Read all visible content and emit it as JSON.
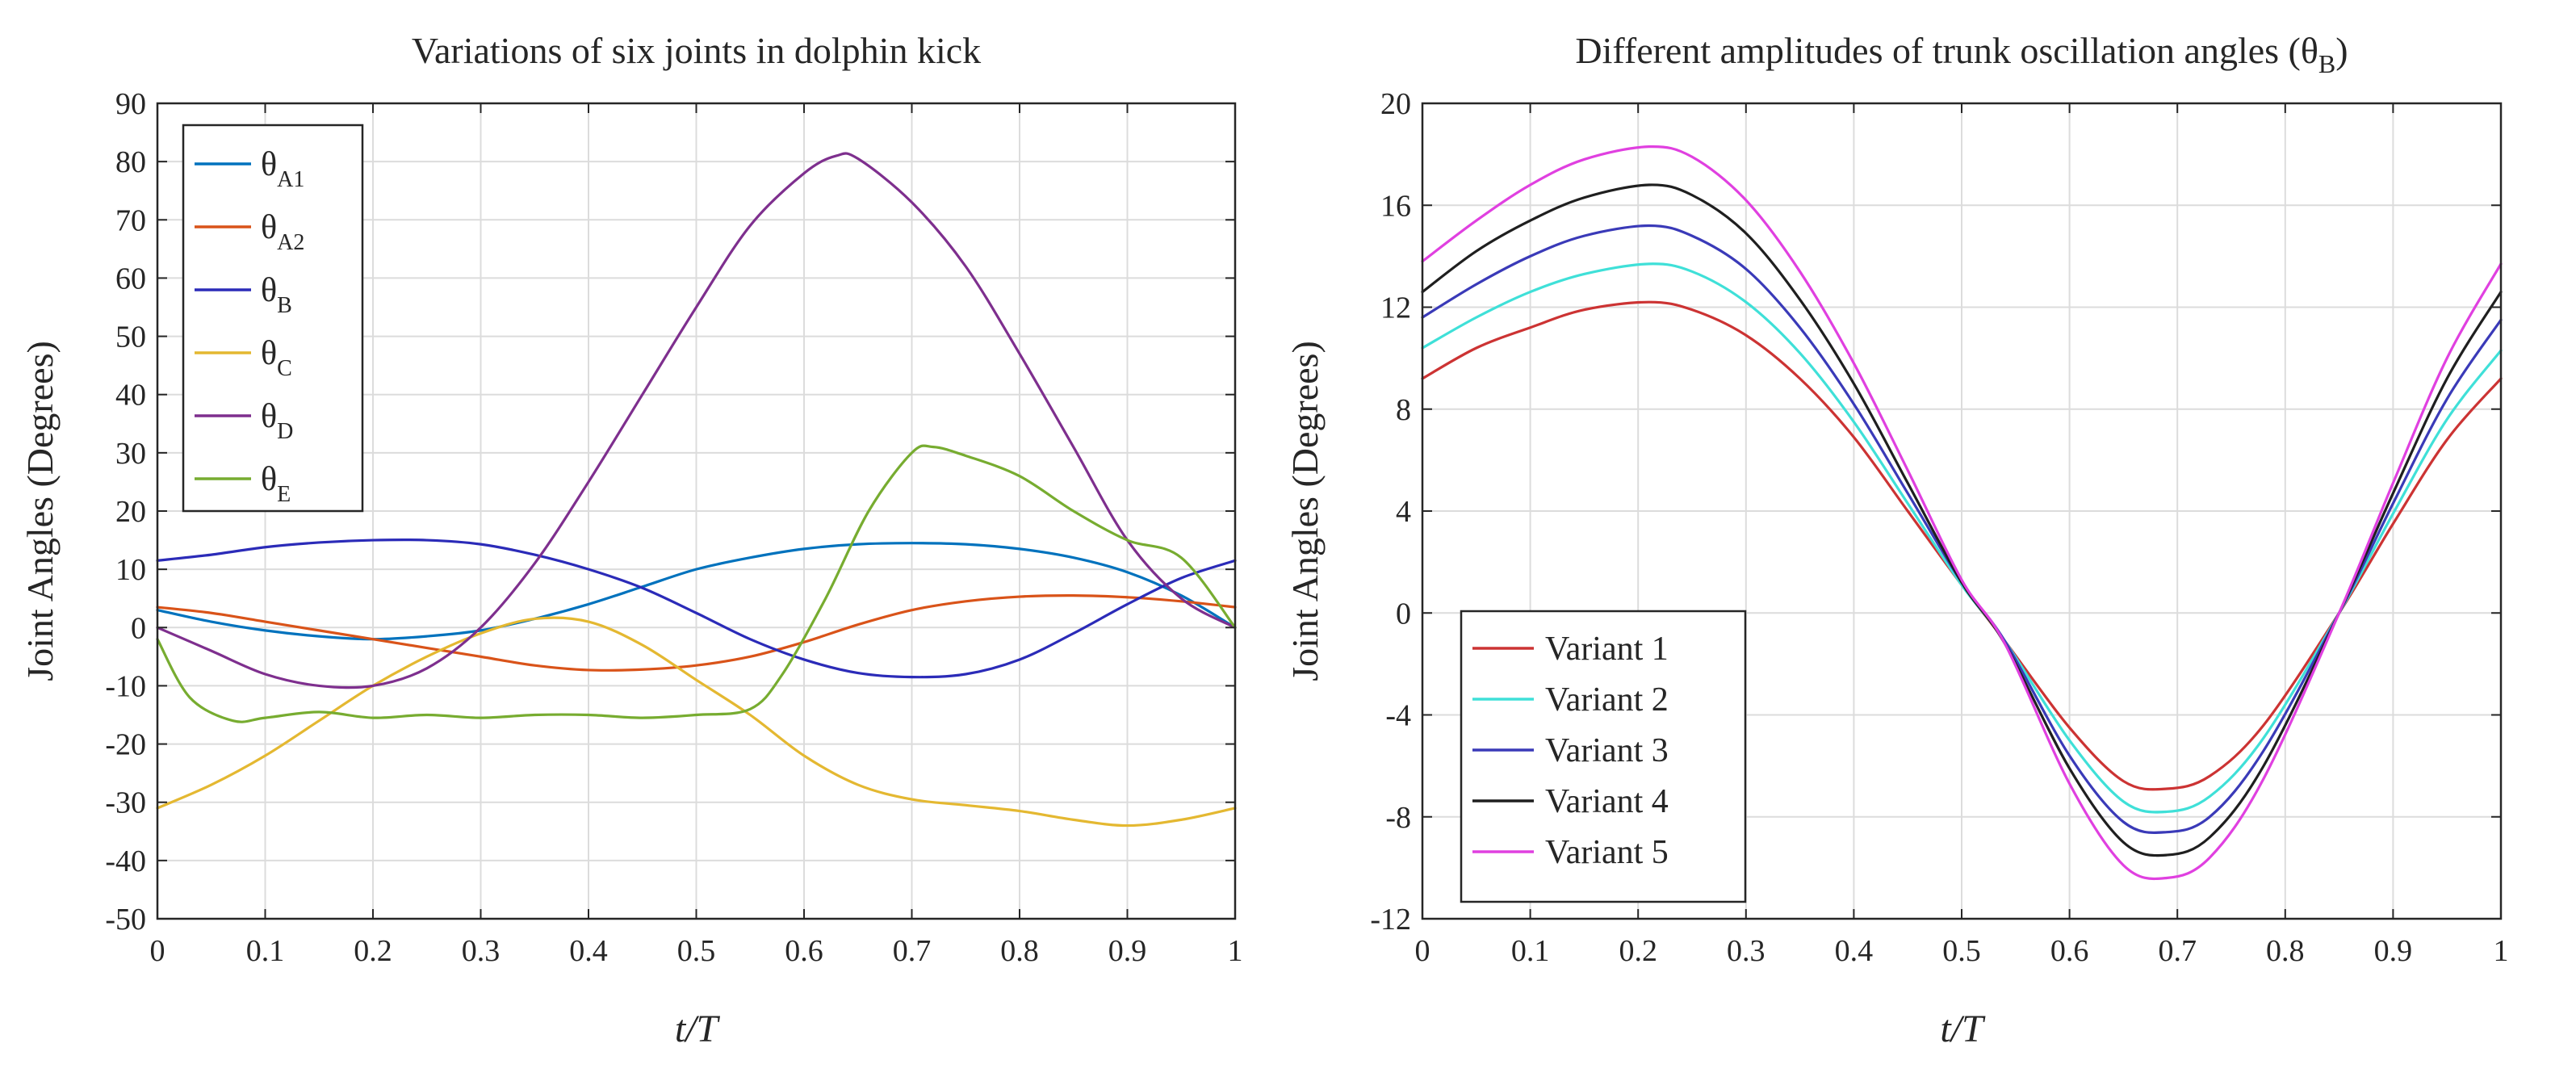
{
  "chart_data": [
    {
      "type": "line",
      "title": "Variations of six joints in dolphin kick",
      "xlabel": "t/T",
      "ylabel": "Joint Angles (Degrees)",
      "xlim": [
        0,
        1
      ],
      "ylim": [
        -50,
        90
      ],
      "xticks": [
        0,
        0.1,
        0.2,
        0.3,
        0.4,
        0.5,
        0.6,
        0.7,
        0.8,
        0.9,
        1
      ],
      "xtick_labels": [
        "0",
        "0.1",
        "0.2",
        "0.3",
        "0.4",
        "0.5",
        "0.6",
        "0.7",
        "0.8",
        "0.9",
        "1"
      ],
      "yticks": [
        -50,
        -40,
        -30,
        -20,
        -10,
        0,
        10,
        20,
        30,
        40,
        50,
        60,
        70,
        80,
        90
      ],
      "ytick_labels": [
        "-50",
        "-40",
        "-30",
        "-20",
        "-10",
        "0",
        "10",
        "20",
        "30",
        "40",
        "50",
        "60",
        "70",
        "80",
        "90"
      ],
      "grid": true,
      "legend_position": "top-left",
      "series": [
        {
          "name": "θA1",
          "symbol": "θ",
          "sub": "A1",
          "color": "#0072bd",
          "x": [
            0,
            0.05,
            0.1,
            0.15,
            0.2,
            0.25,
            0.3,
            0.35,
            0.4,
            0.45,
            0.5,
            0.55,
            0.6,
            0.65,
            0.7,
            0.75,
            0.8,
            0.85,
            0.9,
            0.95,
            1
          ],
          "y": [
            3,
            1,
            -0.5,
            -1.5,
            -2,
            -1.5,
            -0.5,
            1.5,
            4,
            7,
            10,
            12,
            13.5,
            14.3,
            14.5,
            14.3,
            13.5,
            12,
            9.5,
            5.5,
            0
          ]
        },
        {
          "name": "θA2",
          "symbol": "θ",
          "sub": "A2",
          "color": "#d95319",
          "x": [
            0,
            0.05,
            0.1,
            0.15,
            0.2,
            0.25,
            0.3,
            0.35,
            0.4,
            0.45,
            0.5,
            0.55,
            0.6,
            0.65,
            0.7,
            0.75,
            0.8,
            0.85,
            0.9,
            0.95,
            1
          ],
          "y": [
            3.5,
            2.5,
            1,
            -0.5,
            -2,
            -3.5,
            -5,
            -6.5,
            -7.3,
            -7.2,
            -6.5,
            -5,
            -2.5,
            0.5,
            3,
            4.5,
            5.3,
            5.5,
            5.2,
            4.5,
            3.5
          ]
        },
        {
          "name": "θB",
          "symbol": "θ",
          "sub": "B",
          "color": "#2b2bb8",
          "x": [
            0,
            0.05,
            0.1,
            0.15,
            0.2,
            0.25,
            0.3,
            0.35,
            0.4,
            0.45,
            0.5,
            0.55,
            0.6,
            0.65,
            0.7,
            0.75,
            0.8,
            0.85,
            0.9,
            0.95,
            1
          ],
          "y": [
            11.5,
            12.5,
            13.8,
            14.6,
            15,
            15,
            14.3,
            12.5,
            10,
            6.8,
            2.5,
            -2,
            -5.5,
            -7.8,
            -8.5,
            -8,
            -5.5,
            -1,
            4,
            8.5,
            11.5
          ]
        },
        {
          "name": "θC",
          "symbol": "θ",
          "sub": "C",
          "color": "#e4b831",
          "x": [
            0,
            0.05,
            0.1,
            0.15,
            0.2,
            0.25,
            0.3,
            0.35,
            0.4,
            0.45,
            0.5,
            0.55,
            0.6,
            0.65,
            0.7,
            0.75,
            0.8,
            0.85,
            0.9,
            0.95,
            1
          ],
          "y": [
            -31,
            -27,
            -22,
            -16,
            -10,
            -5,
            -1,
            1.5,
            1,
            -3,
            -9,
            -15,
            -22,
            -27,
            -29.5,
            -30.5,
            -31.5,
            -33,
            -34,
            -33,
            -31
          ]
        },
        {
          "name": "θD",
          "symbol": "θ",
          "sub": "D",
          "color": "#7e2f8e",
          "x": [
            0,
            0.05,
            0.1,
            0.15,
            0.2,
            0.25,
            0.3,
            0.35,
            0.4,
            0.45,
            0.5,
            0.55,
            0.6,
            0.63,
            0.65,
            0.7,
            0.75,
            0.8,
            0.85,
            0.9,
            0.95,
            1
          ],
          "y": [
            0,
            -4,
            -8,
            -10,
            -10,
            -7,
            0,
            11,
            25,
            40,
            55,
            69,
            78,
            81,
            80.5,
            73,
            62,
            47,
            31,
            15,
            5,
            0
          ]
        },
        {
          "name": "θE",
          "symbol": "θ",
          "sub": "E",
          "color": "#77ac30",
          "x": [
            0,
            0.03,
            0.07,
            0.1,
            0.15,
            0.2,
            0.25,
            0.3,
            0.35,
            0.4,
            0.45,
            0.5,
            0.55,
            0.58,
            0.62,
            0.66,
            0.7,
            0.72,
            0.75,
            0.8,
            0.85,
            0.9,
            0.95,
            1
          ],
          "y": [
            -2,
            -12,
            -16,
            -15.5,
            -14.5,
            -15.5,
            -15,
            -15.5,
            -15,
            -15,
            -15.5,
            -15,
            -14,
            -8,
            5,
            20,
            30,
            31,
            29.5,
            26,
            20,
            15,
            12,
            0
          ]
        }
      ]
    },
    {
      "type": "line",
      "title": "Different amplitudes of trunk oscillation angles (θ",
      "title_sub": "B",
      "title_end": ")",
      "xlabel": "t/T",
      "ylabel": "Joint Angles (Degrees)",
      "xlim": [
        0,
        1
      ],
      "ylim": [
        -12,
        20
      ],
      "xticks": [
        0,
        0.1,
        0.2,
        0.3,
        0.4,
        0.5,
        0.6,
        0.7,
        0.8,
        0.9,
        1
      ],
      "xtick_labels": [
        "0",
        "0.1",
        "0.2",
        "0.3",
        "0.4",
        "0.5",
        "0.6",
        "0.7",
        "0.8",
        "0.9",
        "1"
      ],
      "yticks": [
        -12,
        -8,
        -4,
        0,
        4,
        8,
        12,
        16,
        20
      ],
      "ytick_labels": [
        "-12",
        "-8",
        "-4",
        "0",
        "4",
        "8",
        "12",
        "16",
        "20"
      ],
      "grid": true,
      "legend_position": "bottom-left",
      "series": [
        {
          "name": "Variant 1",
          "color": "#cc3333",
          "x": [
            0,
            0.05,
            0.1,
            0.15,
            0.21,
            0.25,
            0.3,
            0.35,
            0.4,
            0.45,
            0.5,
            0.54,
            0.6,
            0.65,
            0.69,
            0.73,
            0.78,
            0.85,
            0.9,
            0.95,
            1
          ],
          "y": [
            9.2,
            10.4,
            11.2,
            11.9,
            12.2,
            11.9,
            10.9,
            9.2,
            6.9,
            4.0,
            1.1,
            -1.1,
            -4.5,
            -6.6,
            -6.9,
            -6.4,
            -4.4,
            0,
            3.5,
            6.8,
            9.2
          ]
        },
        {
          "name": "Variant 2",
          "color": "#3fe0d8",
          "x": [
            0,
            0.05,
            0.1,
            0.15,
            0.21,
            0.25,
            0.3,
            0.35,
            0.4,
            0.45,
            0.5,
            0.54,
            0.6,
            0.65,
            0.69,
            0.73,
            0.78,
            0.85,
            0.9,
            0.95,
            1
          ],
          "y": [
            10.4,
            11.6,
            12.6,
            13.3,
            13.7,
            13.4,
            12.2,
            10.2,
            7.5,
            4.3,
            1.1,
            -1.1,
            -5.0,
            -7.4,
            -7.8,
            -7.2,
            -4.9,
            0,
            3.9,
            7.6,
            10.3
          ]
        },
        {
          "name": "Variant 3",
          "color": "#3a3ab8",
          "x": [
            0,
            0.05,
            0.1,
            0.15,
            0.21,
            0.25,
            0.3,
            0.35,
            0.4,
            0.45,
            0.5,
            0.54,
            0.6,
            0.65,
            0.69,
            0.73,
            0.78,
            0.85,
            0.9,
            0.95,
            1
          ],
          "y": [
            11.6,
            12.9,
            14.0,
            14.8,
            15.2,
            14.8,
            13.5,
            11.2,
            8.2,
            4.7,
            1.2,
            -1.1,
            -5.6,
            -8.2,
            -8.6,
            -8.0,
            -5.4,
            0,
            4.3,
            8.4,
            11.5
          ]
        },
        {
          "name": "Variant 4",
          "color": "#1f1f1f",
          "x": [
            0,
            0.05,
            0.1,
            0.15,
            0.21,
            0.25,
            0.3,
            0.35,
            0.4,
            0.45,
            0.5,
            0.54,
            0.6,
            0.65,
            0.69,
            0.73,
            0.78,
            0.85,
            0.9,
            0.95,
            1
          ],
          "y": [
            12.6,
            14.2,
            15.4,
            16.3,
            16.8,
            16.4,
            14.9,
            12.3,
            9.0,
            5.1,
            1.2,
            -1.2,
            -6.1,
            -9.0,
            -9.5,
            -8.8,
            -6.0,
            0,
            4.7,
            9.2,
            12.6
          ]
        },
        {
          "name": "Variant 5",
          "color": "#e040e0",
          "x": [
            0,
            0.05,
            0.1,
            0.15,
            0.21,
            0.25,
            0.3,
            0.35,
            0.4,
            0.45,
            0.5,
            0.54,
            0.6,
            0.65,
            0.69,
            0.73,
            0.78,
            0.85,
            0.9,
            0.95,
            1
          ],
          "y": [
            13.8,
            15.4,
            16.8,
            17.8,
            18.3,
            17.9,
            16.2,
            13.4,
            9.8,
            5.6,
            1.3,
            -1.2,
            -6.7,
            -9.9,
            -10.4,
            -9.6,
            -6.5,
            0,
            5.1,
            10.0,
            13.7
          ]
        }
      ]
    }
  ]
}
